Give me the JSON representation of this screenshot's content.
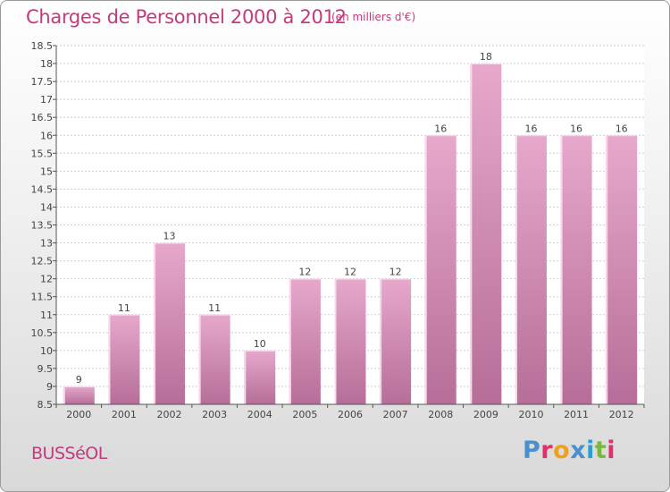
{
  "header": {
    "title": "Charges de Personnel 2000 à 2012",
    "subtitle": "(en milliers d'€)"
  },
  "footer": {
    "commune": "BUSSéOL",
    "logo_text": "Proxiti",
    "logo_colors": [
      "#4a8fd0",
      "#e0306a",
      "#f0a020",
      "#4a8fd0",
      "#2aa0d0",
      "#7ab83a",
      "#e0306a"
    ]
  },
  "colors": {
    "bar_top": "#e7a8cc",
    "bar_bottom": "#b66e98",
    "bar_light": "#f6d9ea",
    "grid": "#cfcfcf",
    "accent": "#c43a7d"
  },
  "chart_data": {
    "type": "bar",
    "categories": [
      "2000",
      "2001",
      "2002",
      "2003",
      "2004",
      "2005",
      "2006",
      "2007",
      "2008",
      "2009",
      "2010",
      "2011",
      "2012"
    ],
    "values": [
      9,
      11,
      13,
      11,
      10,
      12,
      12,
      12,
      16,
      18,
      16,
      16,
      16
    ],
    "data_labels": [
      "9",
      "11",
      "13",
      "11",
      "10",
      "12",
      "12",
      "12",
      "16",
      "18",
      "16",
      "16",
      "16"
    ],
    "title": "Charges de Personnel 2000 à 2012",
    "subtitle": "(en milliers d'€)",
    "xlabel": "",
    "ylabel": "",
    "ylim": [
      8.5,
      18.5
    ],
    "yticks": [
      "8.5",
      "9",
      "9.5",
      "10",
      "10.5",
      "11",
      "11.5",
      "12",
      "12.5",
      "13",
      "13.5",
      "14",
      "14.5",
      "15",
      "15.5",
      "16",
      "16.5",
      "17",
      "17.5",
      "18",
      "18.5"
    ],
    "grid": true,
    "legend": "none"
  }
}
